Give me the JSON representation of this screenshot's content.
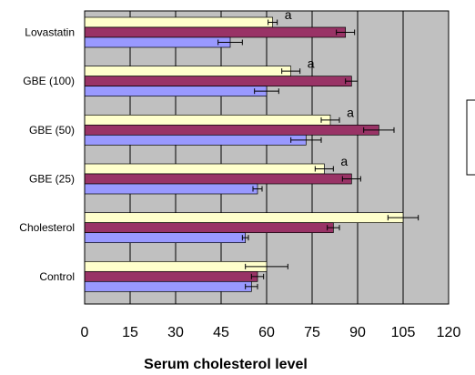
{
  "chart_data": {
    "type": "bar",
    "orientation": "horizontal",
    "xlabel": "Serum cholesterol level",
    "xlim": [
      0,
      120
    ],
    "xticks": [
      0,
      15,
      30,
      45,
      60,
      75,
      90,
      105,
      120
    ],
    "grid": "vertical",
    "categories": [
      "Lovastatin",
      "GBE (100)",
      "GBE (50)",
      "GBE (25)",
      "Cholesterol",
      "Control"
    ],
    "series": [
      {
        "color": "#ffffcc",
        "values": [
          62,
          68,
          81,
          79,
          105,
          60
        ],
        "errors": [
          1.5,
          3,
          3,
          3,
          5,
          7
        ]
      },
      {
        "color": "#993366",
        "values": [
          86,
          88,
          97,
          88,
          82,
          57
        ],
        "errors": [
          3,
          2,
          5,
          3,
          2,
          2
        ]
      },
      {
        "color": "#9999ff",
        "values": [
          48,
          60,
          73,
          57,
          53,
          55
        ],
        "errors": [
          4,
          4,
          5,
          1.5,
          1,
          2
        ]
      }
    ],
    "annotations": [
      {
        "category": "Lovastatin",
        "text": "a"
      },
      {
        "category": "GBE (100)",
        "text": "a"
      },
      {
        "category": "GBE (50)",
        "text": "a"
      },
      {
        "category": "GBE (25)",
        "text": "a"
      }
    ],
    "colors": {
      "plot_background": "#c0c0c0",
      "gridline": "#000000"
    },
    "legend": {
      "position": "right",
      "entries": []
    }
  }
}
